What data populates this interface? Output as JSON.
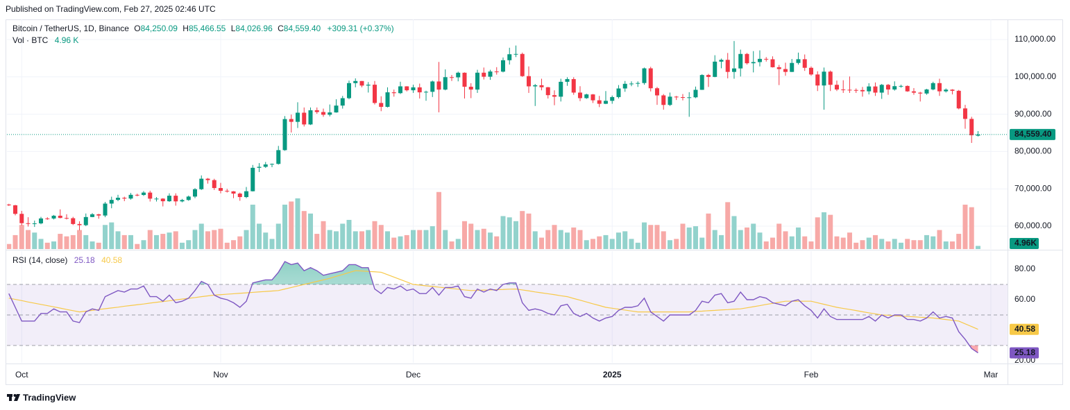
{
  "header": {
    "published": "Published on TradingView.com, Feb 27, 2025 02:46 UTC"
  },
  "footer": {
    "brand": "TradingView"
  },
  "chart_data": [
    {
      "type": "candlestick",
      "title": "Bitcoin / TetherUS, 1D, Binance",
      "ohlc_legend": [
        {
          "key": "O",
          "value": "84,250.09"
        },
        {
          "key": "H",
          "value": "85,466.55"
        },
        {
          "key": "L",
          "value": "84,026.96"
        },
        {
          "key": "C",
          "value": "84,559.40"
        }
      ],
      "change": "+309.31 (+0.37%)",
      "last_label": "84,559.40",
      "up_color": "#089981",
      "down_color": "#f23645",
      "grid": true,
      "xlim": [
        -0.3,
        155.6
      ],
      "xticks": [
        {
          "value": 2,
          "label": "Oct"
        },
        {
          "value": 33,
          "label": "Nov"
        },
        {
          "value": 63,
          "label": "Dec"
        },
        {
          "value": 94,
          "label": "2025"
        },
        {
          "value": 125,
          "label": "Feb"
        },
        {
          "value": 153,
          "label": "Mar"
        }
      ],
      "ylim": [
        53870,
        115390
      ],
      "yticks": [
        {
          "value": 60000,
          "label": "60,000.00"
        },
        {
          "value": 70000,
          "label": "70,000.00"
        },
        {
          "value": 80000,
          "label": "80,000.00"
        },
        {
          "value": 90000,
          "label": "90,000.00"
        },
        {
          "value": 100000,
          "label": "100,000.00"
        },
        {
          "value": 110000,
          "label": "110,000.00"
        }
      ],
      "open": [
        65800,
        65600,
        63300,
        60800,
        60600,
        60750,
        62070,
        62050,
        62800,
        62200,
        62130,
        60580,
        60270,
        62450,
        63190,
        62850,
        66050,
        67040,
        67610,
        67400,
        68400,
        68360,
        69000,
        67370,
        67380,
        66680,
        68160,
        66640,
        67010,
        67930,
        69900,
        72720,
        72340,
        70220,
        69480,
        69330,
        68730,
        67800,
        69360,
        75640,
        75900,
        76540,
        76680,
        80370,
        88700,
        87950,
        90400,
        87250,
        91060,
        90580,
        89850,
        90470,
        92310,
        94290,
        98330,
        98890,
        97670,
        97900,
        93010,
        91960,
        95860,
        95640,
        97460,
        96410,
        97190,
        95860,
        96000,
        98770,
        96590,
        99920,
        99870,
        101110,
        97360,
        96600,
        101120,
        100040,
        101440,
        101400,
        104460,
        106060,
        106140,
        100200,
        97460,
        97760,
        97220,
        95100,
        94690,
        98680,
        99400,
        95790,
        94300,
        95300,
        93720,
        92790,
        93580,
        94590,
        96890,
        98140,
        98210,
        98350,
        102280,
        96950,
        95040,
        92480,
        94700,
        94570,
        94490,
        94520,
        96530,
        100500,
        99990,
        104080,
        104560,
        101330,
        102260,
        106140,
        103650,
        103960,
        104820,
        104710,
        102580,
        102090,
        101330,
        103730,
        104730,
        102430,
        100640,
        97690,
        101400,
        97870,
        96620,
        96550,
        96480,
        96470,
        96130,
        97430,
        95780,
        97870,
        96620,
        97510,
        97570,
        96120,
        95770,
        95540,
        96630,
        98330,
        96130,
        96580,
        96270,
        91550,
        88740,
        84250.09
      ],
      "high": [
        66000,
        65700,
        64100,
        62400,
        61500,
        62500,
        62400,
        63000,
        64500,
        63200,
        62500,
        61300,
        63400,
        63500,
        63300,
        66500,
        67900,
        68400,
        67900,
        68900,
        68700,
        69400,
        69500,
        67800,
        67500,
        68800,
        68800,
        67300,
        68200,
        70200,
        73600,
        72900,
        72700,
        71600,
        70000,
        69400,
        69000,
        70500,
        76400,
        76900,
        77200,
        76800,
        81500,
        89500,
        89900,
        93200,
        91800,
        91800,
        91800,
        91500,
        92600,
        94000,
        94900,
        99000,
        99600,
        98900,
        98600,
        98900,
        94800,
        97200,
        96600,
        98700,
        97500,
        97900,
        98200,
        96300,
        99000,
        104000,
        102000,
        100500,
        101400,
        101200,
        98300,
        101900,
        102500,
        101900,
        102600,
        105200,
        107800,
        108400,
        106500,
        102800,
        98100,
        99500,
        97300,
        96400,
        99500,
        99900,
        99900,
        97500,
        95500,
        95400,
        94900,
        96200,
        95000,
        97800,
        98900,
        98800,
        98800,
        102500,
        102700,
        97300,
        95400,
        95800,
        94900,
        95400,
        95900,
        97400,
        100700,
        100800,
        105800,
        104900,
        106400,
        109600,
        107300,
        106400,
        106900,
        107100,
        105300,
        105500,
        103200,
        103800,
        104800,
        106500,
        106000,
        102800,
        101500,
        102500,
        101700,
        99000,
        99100,
        100100,
        96900,
        97300,
        98300,
        98500,
        98100,
        98100,
        98800,
        97900,
        97700,
        97000,
        96000,
        96800,
        98700,
        99500,
        96900,
        96700,
        96500,
        92500,
        89300,
        85466.55
      ],
      "low": [
        65400,
        62900,
        60200,
        59900,
        59800,
        60500,
        61700,
        61800,
        62100,
        61800,
        60300,
        58900,
        60000,
        62400,
        62000,
        62400,
        64800,
        66700,
        66700,
        67100,
        68000,
        68100,
        66600,
        66600,
        65300,
        66500,
        65500,
        66400,
        66800,
        67500,
        69700,
        71400,
        69700,
        68800,
        69000,
        67500,
        66800,
        67500,
        69300,
        74500,
        75600,
        75800,
        76500,
        80200,
        85100,
        86300,
        86700,
        87100,
        90100,
        89300,
        89400,
        90400,
        91500,
        94000,
        97200,
        97200,
        95800,
        92600,
        90800,
        91800,
        94700,
        95400,
        96100,
        95700,
        94200,
        93600,
        94600,
        90500,
        96400,
        98900,
        98800,
        94200,
        94300,
        95700,
        99300,
        99200,
        100600,
        101200,
        103300,
        105300,
        100000,
        95700,
        92200,
        96400,
        94200,
        92400,
        93400,
        97600,
        95200,
        93500,
        94100,
        93000,
        91900,
        92700,
        92800,
        94200,
        96000,
        97500,
        97300,
        97900,
        96100,
        92500,
        91200,
        92200,
        93800,
        93700,
        89300,
        94300,
        96500,
        97300,
        99900,
        102300,
        99600,
        99500,
        100100,
        103300,
        101200,
        102800,
        104100,
        102500,
        97800,
        100300,
        101300,
        103300,
        101600,
        100300,
        96200,
        91200,
        96200,
        96200,
        95700,
        95700,
        95700,
        94700,
        95300,
        94900,
        94100,
        95200,
        96300,
        97100,
        96000,
        95200,
        93400,
        95200,
        96400,
        94900,
        95800,
        95300,
        91300,
        86100,
        82300,
        84026.96
      ],
      "close": [
        65600,
        63300,
        60800,
        60600,
        60750,
        62070,
        62050,
        62800,
        62200,
        62130,
        60580,
        60270,
        62450,
        63190,
        62850,
        66050,
        67040,
        67610,
        67400,
        68400,
        68360,
        69000,
        67370,
        67380,
        66680,
        68160,
        66640,
        67010,
        67930,
        69900,
        72720,
        72340,
        70220,
        69480,
        69330,
        68730,
        67800,
        69360,
        75640,
        75900,
        76540,
        76680,
        80370,
        88700,
        87950,
        90400,
        87250,
        91060,
        90580,
        89850,
        90470,
        92310,
        94290,
        98330,
        98890,
        97670,
        97900,
        93010,
        91960,
        95860,
        95640,
        97460,
        96410,
        97190,
        95860,
        96000,
        98770,
        96590,
        99920,
        99870,
        101110,
        97360,
        96600,
        101120,
        100040,
        101440,
        101400,
        104460,
        106060,
        106140,
        100200,
        97460,
        97760,
        97220,
        95100,
        94690,
        98680,
        99400,
        95790,
        94300,
        95300,
        93720,
        92790,
        93580,
        94590,
        96890,
        98140,
        98210,
        98350,
        102280,
        96950,
        95040,
        92480,
        94700,
        94570,
        94490,
        94520,
        96530,
        100500,
        99990,
        104080,
        104560,
        101330,
        102260,
        106140,
        103650,
        103960,
        104820,
        104710,
        102580,
        102090,
        101330,
        103730,
        104730,
        102430,
        100640,
        97690,
        101400,
        97870,
        96620,
        96550,
        96480,
        96470,
        96130,
        97430,
        95780,
        97870,
        96620,
        97510,
        97570,
        96120,
        95770,
        95540,
        96630,
        98330,
        96130,
        96580,
        96270,
        91550,
        88740,
        84350,
        84559.4
      ]
    },
    {
      "type": "bar",
      "title": "Vol · BTC",
      "legend_value": "4.96 K",
      "badge": "4.96K",
      "up_color": "#92d2cc",
      "down_color": "#f7a9a7",
      "badge_color": "#089981",
      "ylim": [
        0,
        360000
      ],
      "values": [
        8000,
        22000,
        38000,
        30000,
        26000,
        16000,
        10000,
        12000,
        24000,
        20000,
        22000,
        30000,
        22000,
        12000,
        10000,
        38000,
        42000,
        28000,
        22000,
        22000,
        8000,
        14000,
        30000,
        22000,
        24000,
        26000,
        28000,
        10000,
        14000,
        30000,
        40000,
        28000,
        30000,
        32000,
        10000,
        14000,
        20000,
        30000,
        70000,
        40000,
        26000,
        16000,
        40000,
        70000,
        75000,
        80000,
        60000,
        56000,
        24000,
        44000,
        30000,
        28000,
        40000,
        46000,
        28000,
        28000,
        30000,
        44000,
        38000,
        28000,
        18000,
        20000,
        22000,
        30000,
        30000,
        30000,
        36000,
        90000,
        30000,
        12000,
        16000,
        44000,
        40000,
        30000,
        32000,
        26000,
        20000,
        52000,
        50000,
        44000,
        60000,
        56000,
        28000,
        18000,
        30000,
        38000,
        30000,
        26000,
        34000,
        30000,
        14000,
        16000,
        20000,
        22000,
        16000,
        26000,
        28000,
        16000,
        10000,
        42000,
        38000,
        38000,
        28000,
        14000,
        16000,
        40000,
        34000,
        36000,
        18000,
        56000,
        30000,
        22000,
        74000,
        52000,
        30000,
        34000,
        40000,
        26000,
        12000,
        18000,
        40000,
        28000,
        20000,
        34000,
        20000,
        12000,
        50000,
        58000,
        54000,
        20000,
        18000,
        26000,
        10000,
        14000,
        18000,
        22000,
        16000,
        12000,
        16000,
        10000,
        16000,
        14000,
        14000,
        22000,
        20000,
        30000,
        12000,
        12000,
        24000,
        70000,
        66000,
        4960
      ]
    },
    {
      "type": "line",
      "title": "RSI (14, close)",
      "ylim": [
        18.64,
        91.82
      ],
      "bands": [
        30,
        50,
        70
      ],
      "band_color": "#7e57c2",
      "yticks": [
        {
          "value": 20,
          "label": "20.00"
        },
        {
          "value": 60,
          "label": "60.00"
        },
        {
          "value": 80,
          "label": "80.00"
        }
      ],
      "series": [
        {
          "color": "#7e57c2",
          "values": [
            64,
            55,
            46,
            46,
            46,
            51,
            51,
            54,
            52,
            52,
            46,
            45,
            52,
            54,
            53,
            62,
            64,
            66,
            65,
            67,
            67,
            69,
            62,
            62,
            59,
            63,
            58,
            59,
            61,
            66,
            72,
            70,
            63,
            61,
            60,
            58,
            55,
            59,
            71,
            72,
            73,
            73,
            78,
            85,
            83,
            84,
            79,
            81,
            79,
            76,
            77,
            78,
            79,
            83,
            83,
            81,
            81,
            67,
            64,
            68,
            67,
            69,
            66,
            67,
            64,
            64,
            68,
            63,
            68,
            68,
            69,
            62,
            61,
            67,
            65,
            67,
            66,
            70,
            71,
            71,
            58,
            53,
            54,
            53,
            51,
            50,
            56,
            57,
            51,
            49,
            51,
            48,
            46,
            48,
            49,
            53,
            55,
            55,
            56,
            61,
            52,
            49,
            46,
            50,
            50,
            50,
            50,
            53,
            59,
            58,
            63,
            64,
            58,
            59,
            65,
            60,
            60,
            62,
            61,
            58,
            57,
            56,
            59,
            60,
            56,
            53,
            48,
            54,
            49,
            47,
            47,
            47,
            47,
            47,
            49,
            46,
            50,
            48,
            50,
            50,
            47,
            47,
            46,
            48,
            52,
            48,
            49,
            48,
            39,
            34,
            28,
            25.18
          ]
        },
        {
          "color": "#f7c948",
          "values": [
            61,
            60.2,
            59.4,
            58.5,
            57.7,
            56.9,
            56.1,
            55.3,
            54.5,
            53.6,
            52.8,
            52,
            52.5,
            53,
            53.6,
            54.1,
            54.6,
            55.1,
            55.7,
            56.2,
            56.7,
            57.2,
            57.8,
            58.3,
            58.8,
            59.3,
            59.9,
            60.4,
            60.9,
            61.4,
            62,
            62.5,
            63,
            63.3,
            63.6,
            63.9,
            64.2,
            64.5,
            64.8,
            65.1,
            65.4,
            65.7,
            66,
            67,
            68,
            69,
            70,
            71,
            72,
            73,
            74,
            75.3,
            76.5,
            77.8,
            79,
            78.8,
            78.5,
            78.3,
            78,
            76.4,
            74.8,
            73.2,
            71.6,
            70,
            69.6,
            69.1,
            68.7,
            68.2,
            67.8,
            67.3,
            66.9,
            66.4,
            66,
            66.1,
            66.3,
            66.4,
            66.6,
            66.7,
            66.9,
            67,
            66.4,
            65.8,
            65.1,
            64.5,
            63.9,
            63.3,
            62.6,
            62,
            60.8,
            59.7,
            58.5,
            57.3,
            56.2,
            55,
            54.4,
            53.8,
            53.2,
            52.6,
            52,
            52,
            52,
            52,
            52,
            52,
            52,
            52,
            52,
            52.3,
            52.5,
            52.8,
            53,
            53.3,
            53.5,
            53.8,
            54,
            54.7,
            55.4,
            56.1,
            56.9,
            57.6,
            58.3,
            59,
            59,
            59,
            59,
            59,
            58,
            57,
            56,
            55,
            54.3,
            53.6,
            52.9,
            52.1,
            51.4,
            50.7,
            50,
            49.8,
            49.5,
            49.3,
            49,
            48.8,
            48.5,
            48.3,
            48,
            47.5,
            47,
            46.5,
            46,
            44.2,
            42.4,
            40.58
          ]
        }
      ]
    }
  ]
}
